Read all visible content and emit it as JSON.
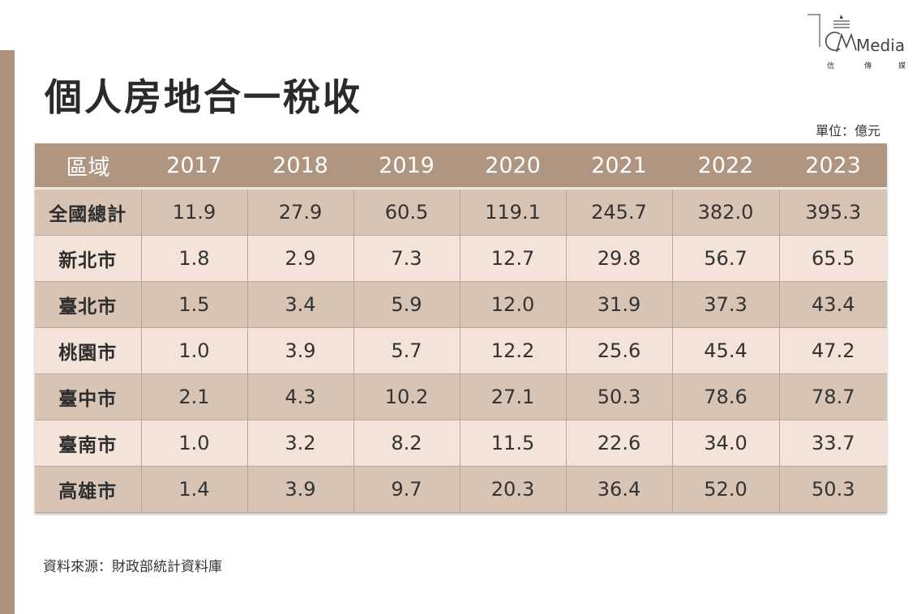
{
  "title": "個人房地合一稅收",
  "logo": {
    "wordmark": "Media",
    "subtitle": [
      "信",
      "傳",
      "媒"
    ]
  },
  "unit": "單位：億元",
  "table": {
    "headers": [
      "區域",
      "2017",
      "2018",
      "2019",
      "2020",
      "2021",
      "2022",
      "2023"
    ],
    "rows": [
      {
        "region": "全國總計",
        "values": [
          "11.9",
          "27.9",
          "60.5",
          "119.1",
          "245.7",
          "382.0",
          "395.3"
        ]
      },
      {
        "region": "新北市",
        "values": [
          "1.8",
          "2.9",
          "7.3",
          "12.7",
          "29.8",
          "56.7",
          "65.5"
        ]
      },
      {
        "region": "臺北市",
        "values": [
          "1.5",
          "3.4",
          "5.9",
          "12.0",
          "31.9",
          "37.3",
          "43.4"
        ]
      },
      {
        "region": "桃園市",
        "values": [
          "1.0",
          "3.9",
          "5.7",
          "12.2",
          "25.6",
          "45.4",
          "47.2"
        ]
      },
      {
        "region": "臺中市",
        "values": [
          "2.1",
          "4.3",
          "10.2",
          "27.1",
          "50.3",
          "78.6",
          "78.7"
        ]
      },
      {
        "region": "臺南市",
        "values": [
          "1.0",
          "3.2",
          "8.2",
          "11.5",
          "22.6",
          "34.0",
          "33.7"
        ]
      },
      {
        "region": "高雄市",
        "values": [
          "1.4",
          "3.9",
          "9.7",
          "20.3",
          "36.4",
          "52.0",
          "50.3"
        ]
      }
    ]
  },
  "source": "資料來源：財政部統計資料庫",
  "colors": {
    "accent": "#ad917a",
    "header_bg": "#b09580",
    "row_dark": "#d7c4b5",
    "row_light": "#f3e3d8"
  }
}
